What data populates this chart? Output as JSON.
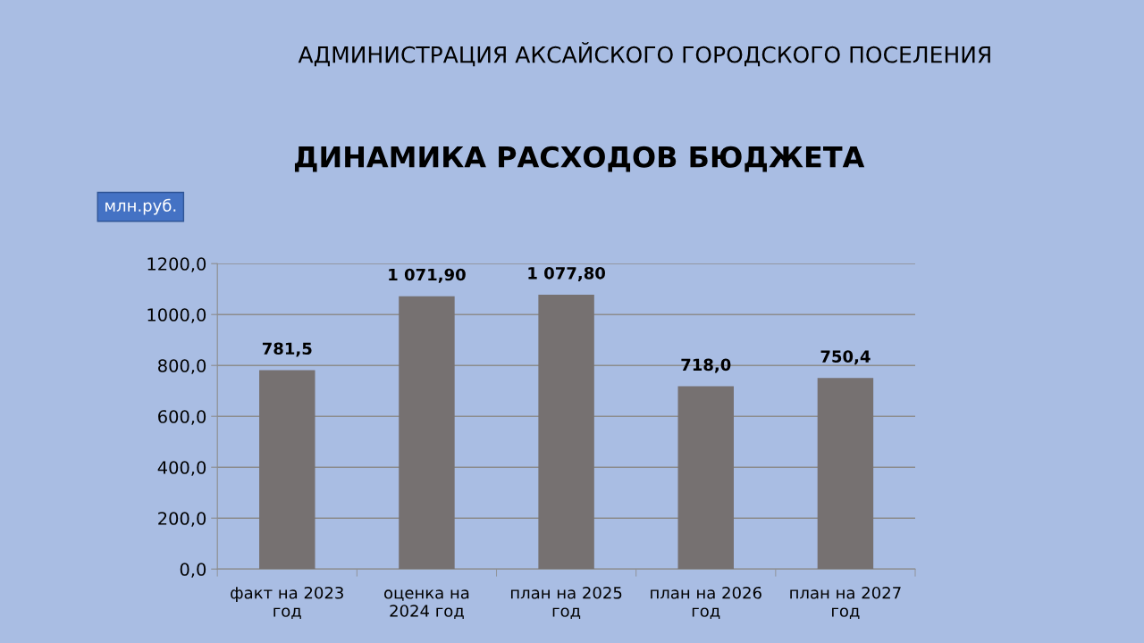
{
  "chart_data": {
    "type": "bar",
    "title": "ДИНАМИКА РАСХОДОВ БЮДЖЕТА",
    "ylabel": "млн.руб.",
    "annotations": [
      "АДМИНИСТРАЦИЯ АКСАЙСКОГО ГОРОДСКОГО ПОСЕЛЕНИЯ"
    ],
    "categories": [
      "факт на 2023\nгод",
      "оценка на\n2024 год",
      "план на 2025\nгод",
      "план на 2026\nгод",
      "план на 2027\nгод"
    ],
    "values": [
      781.5,
      1071.9,
      1077.8,
      718.0,
      750.4
    ],
    "value_labels": [
      "781,5",
      "1 071,90",
      "1 077,80",
      "718,0",
      "750,4"
    ],
    "color": "#767171",
    "ylim": [
      0,
      1200
    ],
    "yticks": [
      {
        "value": 0,
        "label": "0,0"
      },
      {
        "value": 200,
        "label": "200,0"
      },
      {
        "value": 400,
        "label": "400,0"
      },
      {
        "value": 600,
        "label": "600,0"
      },
      {
        "value": 800,
        "label": "800,0"
      },
      {
        "value": 1000,
        "label": "1000,0"
      },
      {
        "value": 1200,
        "label": "1200,0"
      }
    ],
    "grid": "y"
  }
}
